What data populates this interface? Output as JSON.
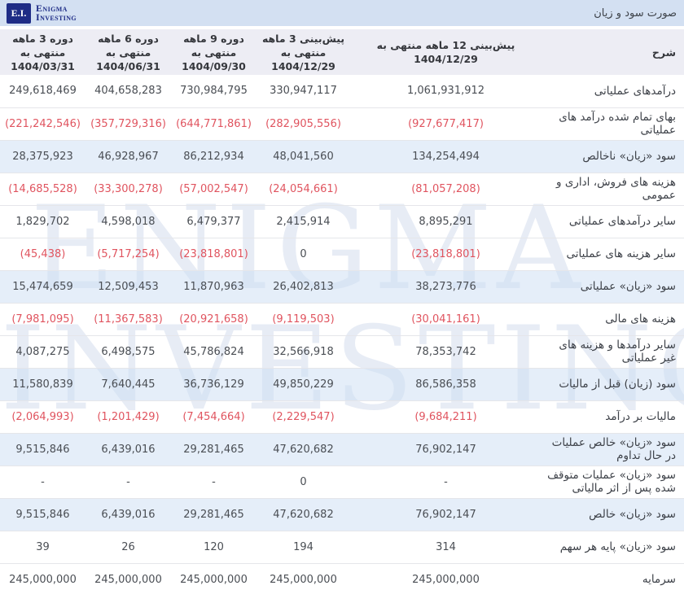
{
  "header": {
    "logo_box": "E.I.",
    "logo_line1": "Enigma",
    "logo_line2": "Investing",
    "title": "صورت سود و زیان"
  },
  "watermark": {
    "line1": "ENIGMA",
    "line2": "INVESTING"
  },
  "colors": {
    "topbar_bg": "#d3e0f2",
    "brand_navy": "#1e2c86",
    "negative_red": "#e0545f",
    "highlight_row": "#e7eef8",
    "header_row_bg": "#ededf4"
  },
  "table": {
    "desc_header": "شرح",
    "columns": [
      {
        "label": "پیش‌بینی 12 ماهه منتهی به",
        "date": "1404/12/29"
      },
      {
        "label": "پیش‌بینی 3 ماهه منتهی به",
        "date": "1404/12/29"
      },
      {
        "label": "دوره 9 ماهه منتهی به",
        "date": "1404/09/30"
      },
      {
        "label": "دوره 6 ماهه منتهی به",
        "date": "1404/06/31"
      },
      {
        "label": "دوره 3 ماهه منتهی به",
        "date": "1404/03/31"
      }
    ],
    "rows": [
      {
        "label": "درآمدهای عملیاتی",
        "highlight": false,
        "values": [
          "1,061,931,912",
          "330,947,117",
          "730,984,795",
          "404,658,283",
          "249,618,469"
        ]
      },
      {
        "label": "بهای تمام شده درآمد های عملیاتی",
        "highlight": false,
        "values": [
          "(927,677,417)",
          "(282,905,556)",
          "(644,771,861)",
          "(357,729,316)",
          "(221,242,546)"
        ]
      },
      {
        "label": "سود «زیان» ناخالص",
        "highlight": true,
        "values": [
          "134,254,494",
          "48,041,560",
          "86,212,934",
          "46,928,967",
          "28,375,923"
        ]
      },
      {
        "label": "هزینه های فروش، اداری و عمومی",
        "highlight": false,
        "values": [
          "(81,057,208)",
          "(24,054,661)",
          "(57,002,547)",
          "(33,300,278)",
          "(14,685,528)"
        ]
      },
      {
        "label": "سایر درآمدهای عملیاتی",
        "highlight": false,
        "values": [
          "8,895,291",
          "2,415,914",
          "6,479,377",
          "4,598,018",
          "1,829,702"
        ]
      },
      {
        "label": "سایر هزینه های عملیاتی",
        "highlight": false,
        "values": [
          "(23,818,801)",
          "0",
          "(23,818,801)",
          "(5,717,254)",
          "(45,438)"
        ]
      },
      {
        "label": "سود «زیان» عملیاتی",
        "highlight": true,
        "values": [
          "38,273,776",
          "26,402,813",
          "11,870,963",
          "12,509,453",
          "15,474,659"
        ]
      },
      {
        "label": "هزینه های مالی",
        "highlight": false,
        "values": [
          "(30,041,161)",
          "(9,119,503)",
          "(20,921,658)",
          "(11,367,583)",
          "(7,981,095)"
        ]
      },
      {
        "label": "سایر درآمدها و هزینه های غیر عملیاتی",
        "highlight": false,
        "values": [
          "78,353,742",
          "32,566,918",
          "45,786,824",
          "6,498,575",
          "4,087,275"
        ]
      },
      {
        "label": "سود (زیان) قبل از مالیات",
        "highlight": true,
        "values": [
          "86,586,358",
          "49,850,229",
          "36,736,129",
          "7,640,445",
          "11,580,839"
        ]
      },
      {
        "label": "مالیات بر درآمد",
        "highlight": false,
        "values": [
          "(9,684,211)",
          "(2,229,547)",
          "(7,454,664)",
          "(1,201,429)",
          "(2,064,993)"
        ]
      },
      {
        "label": "سود «زیان» خالص عملیات در حال تداوم",
        "highlight": true,
        "values": [
          "76,902,147",
          "47,620,682",
          "29,281,465",
          "6,439,016",
          "9,515,846"
        ]
      },
      {
        "label": "سود «زیان» عملیات متوقف شده پس از اثر مالیاتی",
        "highlight": false,
        "values": [
          "-",
          "0",
          "-",
          "-",
          "-"
        ]
      },
      {
        "label": "سود «زیان» خالص",
        "highlight": true,
        "values": [
          "76,902,147",
          "47,620,682",
          "29,281,465",
          "6,439,016",
          "9,515,846"
        ]
      },
      {
        "label": "سود «زیان» پایه هر سهم",
        "highlight": false,
        "values": [
          "314",
          "194",
          "120",
          "26",
          "39"
        ]
      },
      {
        "label": "سرمایه",
        "highlight": false,
        "values": [
          "245,000,000",
          "245,000,000",
          "245,000,000",
          "245,000,000",
          "245,000,000"
        ]
      }
    ]
  }
}
